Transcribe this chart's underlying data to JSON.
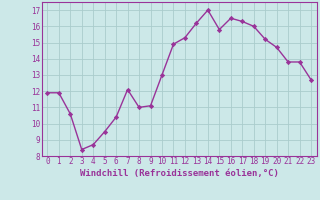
{
  "x": [
    0,
    1,
    2,
    3,
    4,
    5,
    6,
    7,
    8,
    9,
    10,
    11,
    12,
    13,
    14,
    15,
    16,
    17,
    18,
    19,
    20,
    21,
    22,
    23
  ],
  "y": [
    11.9,
    11.9,
    10.6,
    8.4,
    8.7,
    9.5,
    10.4,
    12.1,
    11.0,
    11.1,
    13.0,
    14.9,
    15.3,
    16.2,
    17.0,
    15.8,
    16.5,
    16.3,
    16.0,
    15.2,
    14.7,
    13.8,
    13.8,
    12.7
  ],
  "line_color": "#993399",
  "marker": "D",
  "markersize": 2.2,
  "linewidth": 1.0,
  "bg_color": "#cce8e8",
  "grid_color": "#aacccc",
  "xlabel": "Windchill (Refroidissement éolien,°C)",
  "tick_fontsize": 5.5,
  "xlabel_fontsize": 6.5,
  "xlim": [
    -0.5,
    23.5
  ],
  "ylim": [
    8,
    17.5
  ],
  "yticks": [
    8,
    9,
    10,
    11,
    12,
    13,
    14,
    15,
    16,
    17
  ],
  "xticks": [
    0,
    1,
    2,
    3,
    4,
    5,
    6,
    7,
    8,
    9,
    10,
    11,
    12,
    13,
    14,
    15,
    16,
    17,
    18,
    19,
    20,
    21,
    22,
    23
  ]
}
